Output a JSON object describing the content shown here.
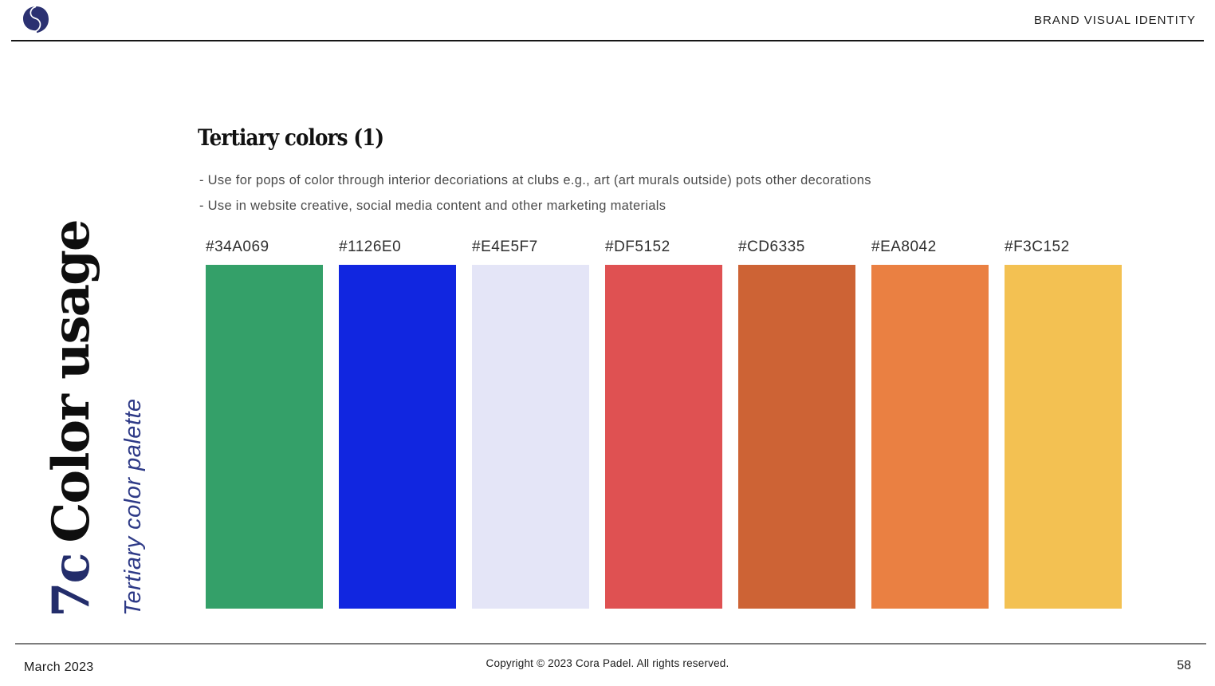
{
  "header": {
    "brand_label": "BRAND VISUAL IDENTITY",
    "logo_color": "#2b3171"
  },
  "sidebar": {
    "section_number": "7c",
    "section_title": "Color usage",
    "subtitle": "Tertiary color palette",
    "accent_color": "#2e3a87",
    "number_color": "#232d6b"
  },
  "content": {
    "heading": "Tertiary colors (1)",
    "bullets": [
      "- Use for pops of color through interior decoriations at clubs e.g., art (art murals outside) pots other decorations",
      "- Use in website creative, social media content and other marketing materials"
    ]
  },
  "palette": {
    "swatches": [
      {
        "hex": "#34A069"
      },
      {
        "hex": "#1126E0"
      },
      {
        "hex": "#E4E5F7"
      },
      {
        "hex": "#DF5152"
      },
      {
        "hex": "#CD6335"
      },
      {
        "hex": "#EA8042"
      },
      {
        "hex": "#F3C152"
      }
    ]
  },
  "footer": {
    "date": "March 2023",
    "copyright": "Copyright © 2023 Cora Padel. All rights reserved.",
    "page_number": "58"
  }
}
